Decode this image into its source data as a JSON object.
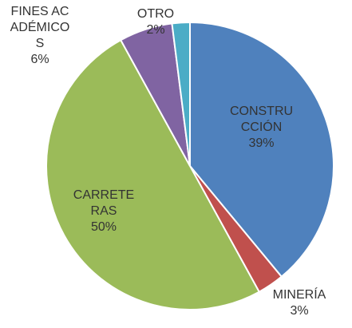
{
  "chart_data": {
    "type": "pie",
    "categories": [
      "CONSTRUCCIÓN",
      "MINERÍA",
      "CARRETERAS",
      "FINES ACADÉMICOS",
      "OTRO"
    ],
    "values": [
      39,
      3,
      50,
      6,
      2
    ],
    "value_labels": [
      "39%",
      "3%",
      "50%",
      "6%",
      "2%"
    ],
    "colors": [
      "#4f81bd",
      "#c0504d",
      "#9bbb59",
      "#8064a2",
      "#4bacc6"
    ]
  }
}
